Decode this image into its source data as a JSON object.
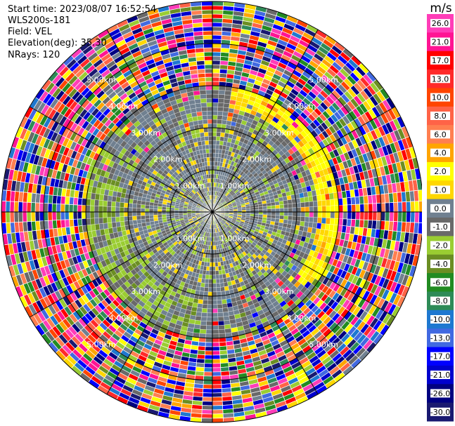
{
  "header": {
    "start_time": "Start time: 2023/08/07 16:52:54",
    "instrument": "WLS200s-181",
    "field": "Field: VEL",
    "elevation": "Elevation(deg): 35.30",
    "nrays": "NRays: 120"
  },
  "chart_data": {
    "type": "heatmap",
    "subtype": "polar PPI",
    "field": "VEL",
    "n_rays": 120,
    "elevation_deg": 35.3,
    "range_rings_km": [
      1,
      2,
      3,
      4,
      5
    ],
    "ring_labels": [
      "1.00km",
      "2.00km",
      "3.00km",
      "4.00km",
      "5.00km"
    ],
    "spoke_interval_deg": 30,
    "colorbar": {
      "unit": "m/s",
      "tick_labels": [
        "26.0",
        "21.0",
        "17.0",
        "13.0",
        "10.0",
        "8.0",
        "6.0",
        "4.0",
        "2.0",
        "1.0",
        "0.0",
        "-1.0",
        "-2.0",
        "-4.0",
        "-6.0",
        "-8.0",
        "-10.0",
        "-13.0",
        "-17.0",
        "-21.0",
        "-26.0",
        "-30.0"
      ],
      "colors": [
        "#ff3db8",
        "#ff1493",
        "#ff0000",
        "#ff2a2a",
        "#ff4500",
        "#ff6347",
        "#ff7f50",
        "#ffa500",
        "#ffff00",
        "#ffd700",
        "#708090",
        "#696969",
        "#9acd32",
        "#6b8e23",
        "#228b22",
        "#2e8b57",
        "#1e78d0",
        "#4169e1",
        "#0000ff",
        "#0000cd",
        "#000080",
        "#191970"
      ]
    },
    "description_pattern": "near field (<2.5 km) mostly 0 to -2 m/s (gray / yellow-green), a yellow 1-4 m/s band around 2.5-3 km to the NE-E, noisy values across full scale beyond 3 km"
  }
}
